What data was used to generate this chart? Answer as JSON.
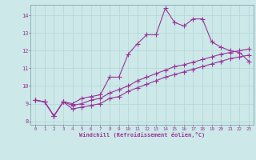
{
  "xlabel": "Windchill (Refroidissement éolien,°C)",
  "bg_color": "#cce8e8",
  "grid_color": "#aacccc",
  "line_color": "#993399",
  "xlim": [
    -0.5,
    23.5
  ],
  "ylim": [
    7.8,
    14.6
  ],
  "yticks": [
    8,
    9,
    10,
    11,
    12,
    13,
    14
  ],
  "xticks": [
    0,
    1,
    2,
    3,
    4,
    5,
    6,
    7,
    8,
    9,
    10,
    11,
    12,
    13,
    14,
    15,
    16,
    17,
    18,
    19,
    20,
    21,
    22,
    23
  ],
  "series1_x": [
    0,
    1,
    2,
    3,
    4,
    5,
    6,
    7,
    8,
    9,
    10,
    11,
    12,
    13,
    14,
    15,
    16,
    17,
    18,
    19,
    20,
    21,
    22,
    23
  ],
  "series1_y": [
    9.2,
    9.1,
    8.3,
    9.1,
    9.0,
    9.3,
    9.4,
    9.5,
    10.5,
    10.5,
    11.8,
    12.4,
    12.9,
    12.9,
    14.4,
    13.6,
    13.4,
    13.8,
    13.8,
    12.5,
    12.2,
    12.0,
    11.9,
    11.4
  ],
  "series2_x": [
    0,
    1,
    2,
    3,
    4,
    5,
    6,
    7,
    8,
    9,
    10,
    11,
    12,
    13,
    14,
    15,
    16,
    17,
    18,
    19,
    20,
    21,
    22,
    23
  ],
  "series2_y": [
    9.2,
    9.1,
    8.3,
    9.1,
    8.9,
    9.0,
    9.2,
    9.3,
    9.6,
    9.8,
    10.0,
    10.3,
    10.5,
    10.7,
    10.9,
    11.1,
    11.2,
    11.35,
    11.5,
    11.65,
    11.8,
    11.9,
    12.0,
    12.1
  ],
  "series3_x": [
    0,
    1,
    2,
    3,
    4,
    5,
    6,
    7,
    8,
    9,
    10,
    11,
    12,
    13,
    14,
    15,
    16,
    17,
    18,
    19,
    20,
    21,
    22,
    23
  ],
  "series3_y": [
    9.2,
    9.1,
    8.3,
    9.1,
    8.7,
    8.8,
    8.9,
    9.0,
    9.3,
    9.4,
    9.7,
    9.9,
    10.1,
    10.3,
    10.5,
    10.65,
    10.8,
    10.95,
    11.1,
    11.25,
    11.4,
    11.55,
    11.65,
    11.75
  ],
  "marker_size": 2.5,
  "line_width": 0.8
}
